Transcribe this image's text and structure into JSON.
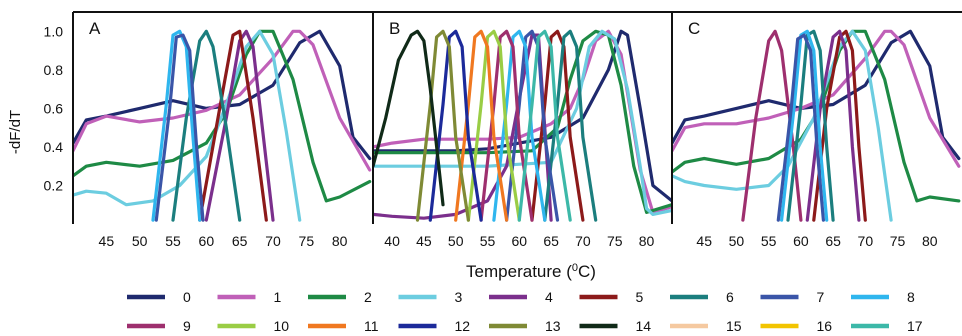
{
  "figure": {
    "ylabel": "-dF/dT",
    "xlabel_prefix": "Temperature (",
    "xlabel_sup": "0",
    "xlabel_suffix": "C)"
  },
  "legend": [
    {
      "label": "0",
      "color": "#1f2a6e"
    },
    {
      "label": "1",
      "color": "#c060b8"
    },
    {
      "label": "2",
      "color": "#1e8a45"
    },
    {
      "label": "3",
      "color": "#6ccde0"
    },
    {
      "label": "4",
      "color": "#7b2f8c"
    },
    {
      "label": "5",
      "color": "#8c1a1a"
    },
    {
      "label": "6",
      "color": "#1b7e7e"
    },
    {
      "label": "7",
      "color": "#3a55a8"
    },
    {
      "label": "8",
      "color": "#2fb6ee"
    },
    {
      "label": "9",
      "color": "#9e2f6e"
    },
    {
      "label": "10",
      "color": "#9acd45"
    },
    {
      "label": "11",
      "color": "#f07820"
    },
    {
      "label": "12",
      "color": "#1c2a9a"
    },
    {
      "label": "13",
      "color": "#7f8a35"
    },
    {
      "label": "14",
      "color": "#102a18"
    },
    {
      "label": "15",
      "color": "#f5c9a0"
    },
    {
      "label": "16",
      "color": "#f2c400"
    },
    {
      "label": "17",
      "color": "#3cb8a8"
    }
  ],
  "chart_data": [
    {
      "type": "line",
      "panel": "A",
      "xlim": [
        40,
        85
      ],
      "ylim": [
        0,
        1.1
      ],
      "xticks": [
        45,
        50,
        55,
        60,
        65,
        70,
        75,
        80
      ],
      "yticks": [
        0.2,
        0.4,
        0.6,
        0.8,
        1.0
      ],
      "series": [
        {
          "name": "0",
          "x": [
            40,
            42,
            45,
            50,
            55,
            60,
            65,
            70,
            74,
            77,
            80,
            82,
            84.5
          ],
          "y": [
            0.42,
            0.54,
            0.56,
            0.6,
            0.64,
            0.6,
            0.62,
            0.72,
            0.94,
            1.0,
            0.82,
            0.45,
            0.34
          ]
        },
        {
          "name": "1",
          "x": [
            40,
            42,
            45,
            50,
            55,
            60,
            65,
            70,
            73,
            74,
            76,
            80,
            84.5
          ],
          "y": [
            0.38,
            0.52,
            0.56,
            0.53,
            0.55,
            0.59,
            0.67,
            0.86,
            1.0,
            1.0,
            0.93,
            0.55,
            0.28
          ]
        },
        {
          "name": "2",
          "x": [
            40,
            42,
            45,
            50,
            55,
            60,
            63,
            66,
            68,
            70,
            73,
            76,
            78,
            80,
            84.5
          ],
          "y": [
            0.25,
            0.3,
            0.32,
            0.3,
            0.33,
            0.42,
            0.58,
            0.88,
            1.0,
            1.0,
            0.75,
            0.32,
            0.12,
            0.14,
            0.22
          ]
        },
        {
          "name": "3",
          "x": [
            40,
            42,
            45,
            48,
            52,
            56,
            60,
            63,
            66,
            68,
            70,
            72,
            74
          ],
          "y": [
            0.15,
            0.17,
            0.16,
            0.1,
            0.12,
            0.2,
            0.35,
            0.62,
            0.92,
            1.0,
            0.88,
            0.48,
            0.02
          ]
        },
        {
          "name": "4",
          "x": [
            60,
            63,
            65,
            66,
            67,
            70
          ],
          "y": [
            0.02,
            0.55,
            0.95,
            1.0,
            0.92,
            0.02
          ]
        },
        {
          "name": "5",
          "x": [
            59,
            62,
            64,
            65,
            67,
            69
          ],
          "y": [
            0.02,
            0.6,
            0.98,
            1.0,
            0.55,
            0.02
          ]
        },
        {
          "name": "6",
          "x": [
            55,
            57,
            59,
            60,
            61,
            63,
            65
          ],
          "y": [
            0.02,
            0.55,
            0.95,
            1.0,
            0.92,
            0.5,
            0.02
          ]
        },
        {
          "name": "8",
          "x": [
            52,
            54,
            55,
            56,
            57,
            58,
            59
          ],
          "y": [
            0.02,
            0.62,
            0.98,
            1.0,
            0.92,
            0.45,
            0.02
          ]
        },
        {
          "name": "7",
          "x": [
            52.5,
            54.5,
            55.5,
            56.5,
            57.5,
            58.5,
            59.5
          ],
          "y": [
            0.02,
            0.6,
            0.97,
            0.98,
            0.9,
            0.42,
            0.02
          ]
        }
      ]
    },
    {
      "type": "line",
      "panel": "B",
      "xlim": [
        37,
        84
      ],
      "ylim": [
        0,
        1.1
      ],
      "xticks": [
        40,
        45,
        50,
        55,
        60,
        65,
        70,
        75,
        80
      ],
      "series": [
        {
          "name": "0",
          "x": [
            37,
            40,
            45,
            50,
            55,
            60,
            65,
            70,
            74,
            76,
            77,
            79,
            81,
            84
          ],
          "y": [
            0.38,
            0.38,
            0.38,
            0.38,
            0.39,
            0.42,
            0.45,
            0.55,
            0.8,
            1.0,
            0.98,
            0.6,
            0.2,
            0.12
          ]
        },
        {
          "name": "1",
          "x": [
            37,
            40,
            45,
            50,
            55,
            60,
            65,
            68,
            70,
            72,
            74,
            76,
            79,
            81,
            84
          ],
          "y": [
            0.4,
            0.42,
            0.44,
            0.44,
            0.44,
            0.45,
            0.52,
            0.6,
            0.75,
            0.95,
            1.0,
            0.88,
            0.28,
            0.06,
            0.09
          ]
        },
        {
          "name": "2",
          "x": [
            37,
            45,
            55,
            62,
            66,
            68,
            70,
            72,
            74,
            76,
            78,
            80,
            84
          ],
          "y": [
            0.37,
            0.37,
            0.37,
            0.38,
            0.5,
            0.75,
            0.95,
            1.0,
            0.98,
            0.72,
            0.3,
            0.06,
            0.1
          ]
        },
        {
          "name": "3",
          "x": [
            37,
            45,
            55,
            65,
            69,
            71,
            73,
            75,
            77,
            79,
            80,
            81,
            84
          ],
          "y": [
            0.3,
            0.3,
            0.3,
            0.32,
            0.6,
            0.92,
            1.0,
            0.96,
            0.7,
            0.3,
            0.08,
            0.05,
            0.07
          ]
        },
        {
          "name": "4",
          "x": [
            37,
            40,
            45,
            50,
            55,
            58,
            60,
            62,
            63,
            65
          ],
          "y": [
            0.05,
            0.04,
            0.03,
            0.05,
            0.12,
            0.3,
            0.65,
            0.98,
            0.98,
            0.02
          ]
        },
        {
          "name": "5",
          "x": [
            62,
            64,
            65,
            66,
            67,
            68,
            70
          ],
          "y": [
            0.02,
            0.62,
            0.97,
            1.0,
            0.92,
            0.45,
            0.02
          ]
        },
        {
          "name": "6",
          "x": [
            64,
            66,
            67,
            68,
            69,
            70,
            72
          ],
          "y": [
            0.02,
            0.62,
            0.97,
            1.0,
            0.92,
            0.45,
            0.02
          ]
        },
        {
          "name": "7",
          "x": [
            58,
            60,
            61,
            62,
            63,
            64,
            66
          ],
          "y": [
            0.02,
            0.62,
            0.97,
            1.0,
            0.92,
            0.45,
            0.02
          ]
        },
        {
          "name": "8",
          "x": [
            56,
            58,
            59,
            60,
            61,
            62,
            64
          ],
          "y": [
            0.02,
            0.62,
            0.97,
            1.0,
            0.92,
            0.45,
            0.02
          ]
        },
        {
          "name": "9",
          "x": [
            54,
            56,
            57,
            58,
            59,
            60,
            62
          ],
          "y": [
            0.02,
            0.62,
            0.97,
            1.0,
            0.92,
            0.45,
            0.02
          ]
        },
        {
          "name": "10",
          "x": [
            52,
            54,
            55,
            56,
            57,
            58,
            60
          ],
          "y": [
            0.02,
            0.62,
            0.97,
            1.0,
            0.92,
            0.45,
            0.02
          ]
        },
        {
          "name": "11",
          "x": [
            50,
            52,
            53,
            54,
            55,
            56,
            58
          ],
          "y": [
            0.02,
            0.62,
            0.97,
            1.0,
            0.92,
            0.45,
            0.02
          ]
        },
        {
          "name": "12",
          "x": [
            46,
            48,
            49,
            50,
            51,
            52,
            54
          ],
          "y": [
            0.02,
            0.62,
            0.97,
            1.0,
            0.92,
            0.45,
            0.02
          ]
        },
        {
          "name": "13",
          "x": [
            44,
            46,
            47,
            48,
            49,
            50,
            52
          ],
          "y": [
            0.02,
            0.62,
            0.97,
            1.0,
            0.92,
            0.45,
            0.02
          ]
        },
        {
          "name": "14",
          "x": [
            37,
            39,
            41,
            43,
            44,
            45,
            46,
            48
          ],
          "y": [
            0.3,
            0.55,
            0.85,
            0.98,
            1.0,
            0.95,
            0.7,
            0.1
          ]
        },
        {
          "name": "17",
          "x": [
            60,
            62,
            63,
            64,
            65,
            66,
            68
          ],
          "y": [
            0.02,
            0.62,
            0.97,
            1.0,
            0.92,
            0.45,
            0.02
          ]
        }
      ]
    },
    {
      "type": "line",
      "panel": "C",
      "xlim": [
        40,
        85
      ],
      "ylim": [
        0,
        1.1
      ],
      "xticks": [
        45,
        50,
        55,
        60,
        65,
        70,
        75,
        80
      ],
      "series": [
        {
          "name": "0",
          "x": [
            40,
            42,
            45,
            50,
            55,
            60,
            65,
            70,
            74,
            77,
            80,
            82,
            84.5
          ],
          "y": [
            0.42,
            0.54,
            0.56,
            0.6,
            0.64,
            0.6,
            0.62,
            0.72,
            0.94,
            1.0,
            0.82,
            0.45,
            0.34
          ]
        },
        {
          "name": "1",
          "x": [
            40,
            42,
            45,
            50,
            55,
            60,
            65,
            70,
            73,
            74,
            76,
            80,
            84.5
          ],
          "y": [
            0.38,
            0.5,
            0.52,
            0.52,
            0.55,
            0.6,
            0.67,
            0.86,
            1.0,
            1.0,
            0.93,
            0.55,
            0.3
          ]
        },
        {
          "name": "2",
          "x": [
            40,
            42,
            45,
            50,
            55,
            60,
            63,
            66,
            68,
            70,
            73,
            76,
            78,
            80,
            84.5
          ],
          "y": [
            0.27,
            0.32,
            0.34,
            0.31,
            0.34,
            0.44,
            0.6,
            0.9,
            1.0,
            1.0,
            0.75,
            0.32,
            0.12,
            0.14,
            0.12
          ]
        },
        {
          "name": "3",
          "x": [
            40,
            42,
            45,
            50,
            55,
            58,
            62,
            66,
            68,
            70,
            72,
            74
          ],
          "y": [
            0.25,
            0.22,
            0.2,
            0.18,
            0.2,
            0.3,
            0.55,
            0.92,
            1.0,
            0.9,
            0.5,
            0.02
          ]
        },
        {
          "name": "9",
          "x": [
            51,
            53,
            55,
            56,
            57,
            59,
            60
          ],
          "y": [
            0.02,
            0.55,
            0.95,
            1.0,
            0.9,
            0.35,
            0.02
          ]
        },
        {
          "name": "5",
          "x": [
            62,
            64,
            66,
            67,
            68,
            69,
            70
          ],
          "y": [
            0.02,
            0.6,
            0.97,
            1.0,
            0.9,
            0.4,
            0.02
          ]
        },
        {
          "name": "4",
          "x": [
            61,
            63,
            65,
            66,
            67,
            68,
            69
          ],
          "y": [
            0.02,
            0.6,
            0.97,
            1.0,
            0.9,
            0.4,
            0.02
          ]
        },
        {
          "name": "6",
          "x": [
            58,
            60,
            61,
            62,
            63,
            64,
            65
          ],
          "y": [
            0.02,
            0.62,
            0.98,
            1.0,
            0.9,
            0.4,
            0.02
          ]
        },
        {
          "name": "8",
          "x": [
            57,
            59,
            60,
            61,
            62,
            63,
            64
          ],
          "y": [
            0.02,
            0.62,
            0.98,
            1.0,
            0.9,
            0.4,
            0.02
          ]
        },
        {
          "name": "7",
          "x": [
            56.5,
            58.5,
            59.5,
            60.5,
            61.5,
            62.5,
            63.5
          ],
          "y": [
            0.02,
            0.6,
            0.96,
            0.98,
            0.9,
            0.4,
            0.02
          ]
        }
      ]
    }
  ]
}
